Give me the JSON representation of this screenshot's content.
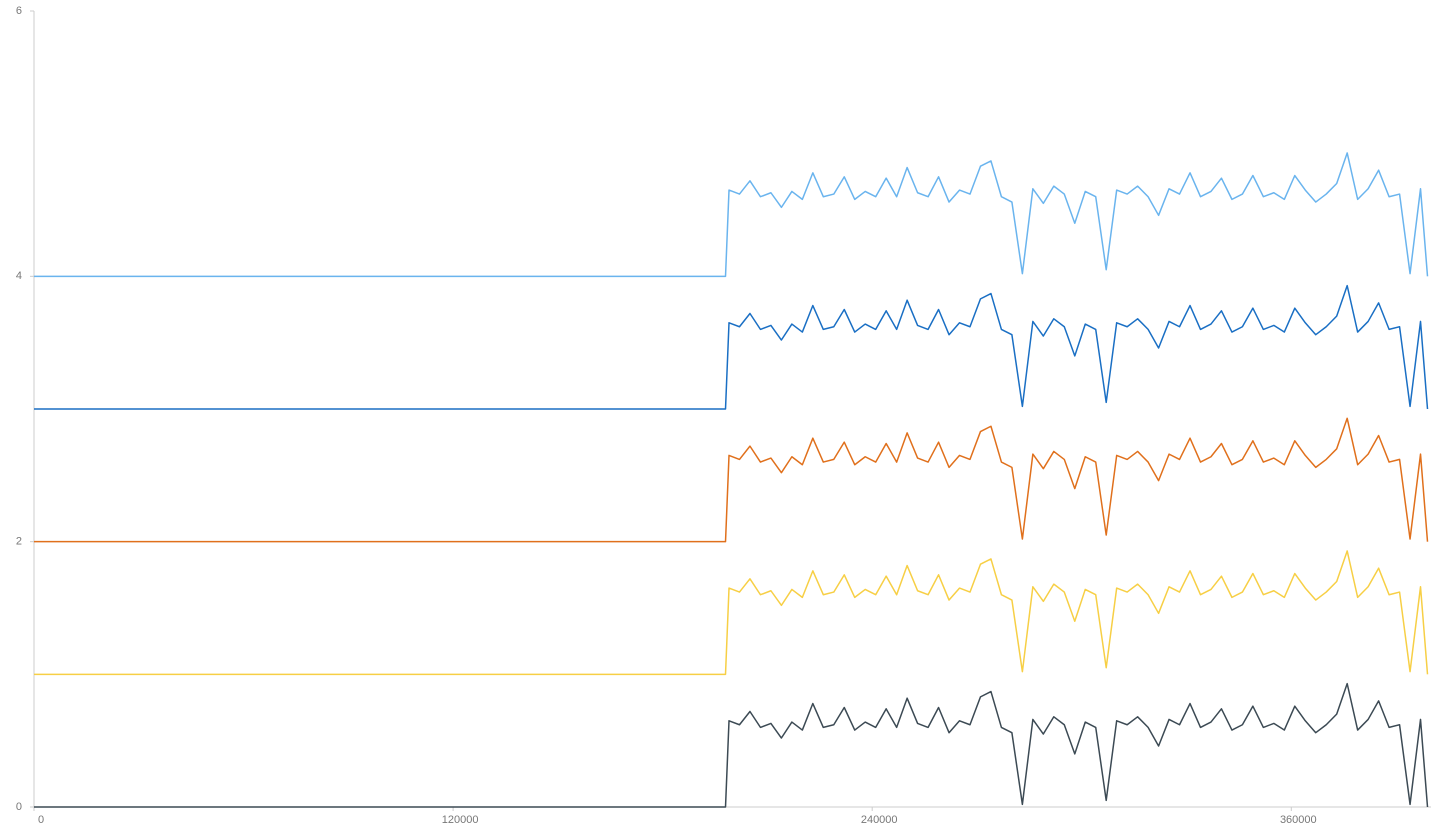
{
  "chart_data": {
    "type": "line",
    "x": [
      0,
      198000,
      199000,
      202000,
      205000,
      208000,
      211000,
      214000,
      217000,
      220000,
      223000,
      226000,
      229000,
      232000,
      235000,
      238000,
      241000,
      244000,
      247000,
      250000,
      253000,
      256000,
      259000,
      262000,
      265000,
      268000,
      271000,
      274000,
      277000,
      280000,
      283000,
      286000,
      289000,
      292000,
      295000,
      298000,
      301000,
      304000,
      307000,
      310000,
      313000,
      316000,
      319000,
      322000,
      325000,
      328000,
      331000,
      334000,
      337000,
      340000,
      343000,
      346000,
      349000,
      352000,
      355000,
      358000,
      361000,
      364000,
      367000,
      370000,
      373000,
      376000,
      379000,
      382000,
      385000,
      388000,
      391000,
      394000,
      397000,
      399000
    ],
    "series": [
      {
        "color": "#6ab4ee",
        "values": [
          4,
          4,
          4.65,
          4.62,
          4.72,
          4.6,
          4.63,
          4.52,
          4.64,
          4.58,
          4.78,
          4.6,
          4.62,
          4.75,
          4.58,
          4.64,
          4.6,
          4.74,
          4.6,
          4.82,
          4.63,
          4.6,
          4.75,
          4.56,
          4.65,
          4.62,
          4.83,
          4.87,
          4.6,
          4.56,
          4.02,
          4.66,
          4.55,
          4.68,
          4.62,
          4.4,
          4.64,
          4.6,
          4.05,
          4.65,
          4.62,
          4.68,
          4.6,
          4.46,
          4.66,
          4.62,
          4.78,
          4.6,
          4.64,
          4.74,
          4.58,
          4.62,
          4.76,
          4.6,
          4.63,
          4.58,
          4.76,
          4.65,
          4.56,
          4.62,
          4.7,
          4.93,
          4.58,
          4.66,
          4.8,
          4.6,
          4.62,
          4.02,
          4.66,
          4
        ]
      },
      {
        "color": "#1a6fc4",
        "values": [
          3,
          3,
          3.65,
          3.62,
          3.72,
          3.6,
          3.63,
          3.52,
          3.64,
          3.58,
          3.78,
          3.6,
          3.62,
          3.75,
          3.58,
          3.64,
          3.6,
          3.74,
          3.6,
          3.82,
          3.63,
          3.6,
          3.75,
          3.56,
          3.65,
          3.62,
          3.83,
          3.87,
          3.6,
          3.56,
          3.02,
          3.66,
          3.55,
          3.68,
          3.62,
          3.4,
          3.64,
          3.6,
          3.05,
          3.65,
          3.62,
          3.68,
          3.6,
          3.46,
          3.66,
          3.62,
          3.78,
          3.6,
          3.64,
          3.74,
          3.58,
          3.62,
          3.76,
          3.6,
          3.63,
          3.58,
          3.76,
          3.65,
          3.56,
          3.62,
          3.7,
          3.93,
          3.58,
          3.66,
          3.8,
          3.6,
          3.62,
          3.02,
          3.66,
          3
        ]
      },
      {
        "color": "#e0701c",
        "values": [
          2,
          2,
          2.65,
          2.62,
          2.72,
          2.6,
          2.63,
          2.52,
          2.64,
          2.58,
          2.78,
          2.6,
          2.62,
          2.75,
          2.58,
          2.64,
          2.6,
          2.74,
          2.6,
          2.82,
          2.63,
          2.6,
          2.75,
          2.56,
          2.65,
          2.62,
          2.83,
          2.87,
          2.6,
          2.56,
          2.02,
          2.66,
          2.55,
          2.68,
          2.62,
          2.4,
          2.64,
          2.6,
          2.05,
          2.65,
          2.62,
          2.68,
          2.6,
          2.46,
          2.66,
          2.62,
          2.78,
          2.6,
          2.64,
          2.74,
          2.58,
          2.62,
          2.76,
          2.6,
          2.63,
          2.58,
          2.76,
          2.65,
          2.56,
          2.62,
          2.7,
          2.93,
          2.58,
          2.66,
          2.8,
          2.6,
          2.62,
          2.02,
          2.66,
          2
        ]
      },
      {
        "color": "#f7cf45",
        "values": [
          1,
          1,
          1.65,
          1.62,
          1.72,
          1.6,
          1.63,
          1.52,
          1.64,
          1.58,
          1.78,
          1.6,
          1.62,
          1.75,
          1.58,
          1.64,
          1.6,
          1.74,
          1.6,
          1.82,
          1.63,
          1.6,
          1.75,
          1.56,
          1.65,
          1.62,
          1.83,
          1.87,
          1.6,
          1.56,
          1.02,
          1.66,
          1.55,
          1.68,
          1.62,
          1.4,
          1.64,
          1.6,
          1.05,
          1.65,
          1.62,
          1.68,
          1.6,
          1.46,
          1.66,
          1.62,
          1.78,
          1.6,
          1.64,
          1.74,
          1.58,
          1.62,
          1.76,
          1.6,
          1.63,
          1.58,
          1.76,
          1.65,
          1.56,
          1.62,
          1.7,
          1.93,
          1.58,
          1.66,
          1.8,
          1.6,
          1.62,
          1.02,
          1.66,
          1
        ]
      },
      {
        "color": "#3c4a54",
        "values": [
          0,
          0,
          0.65,
          0.62,
          0.72,
          0.6,
          0.63,
          0.52,
          0.64,
          0.58,
          0.78,
          0.6,
          0.62,
          0.75,
          0.58,
          0.64,
          0.6,
          0.74,
          0.6,
          0.82,
          0.63,
          0.6,
          0.75,
          0.56,
          0.65,
          0.62,
          0.83,
          0.87,
          0.6,
          0.56,
          0.02,
          0.66,
          0.55,
          0.68,
          0.62,
          0.4,
          0.64,
          0.6,
          0.05,
          0.65,
          0.62,
          0.68,
          0.6,
          0.46,
          0.66,
          0.62,
          0.78,
          0.6,
          0.64,
          0.74,
          0.58,
          0.62,
          0.76,
          0.6,
          0.63,
          0.58,
          0.76,
          0.65,
          0.56,
          0.62,
          0.7,
          0.93,
          0.58,
          0.66,
          0.8,
          0.6,
          0.62,
          0.02,
          0.66,
          0
        ]
      }
    ],
    "xlim": [
      0,
      400000
    ],
    "xticks": [
      0,
      120000,
      240000,
      360000
    ],
    "ylim": [
      0,
      6
    ],
    "yticks": [
      0,
      2,
      4,
      6
    ]
  }
}
